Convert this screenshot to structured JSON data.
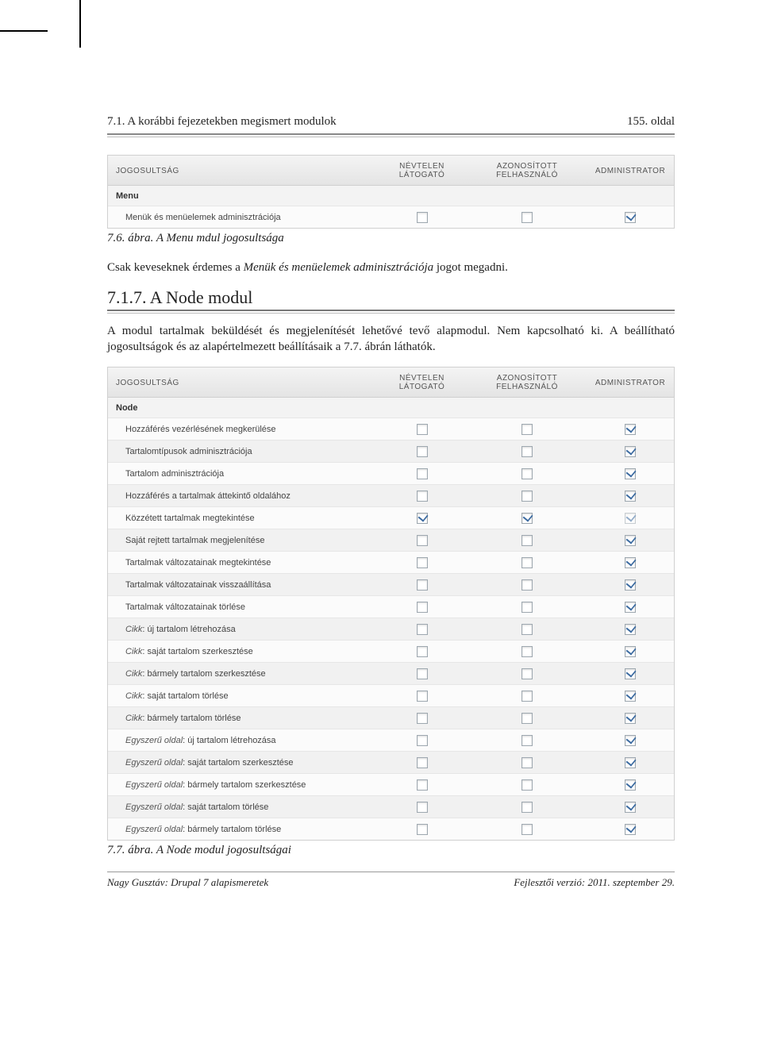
{
  "runhead": {
    "left": "7.1. A korábbi fejezetekben megismert modulok",
    "right": "155. oldal"
  },
  "table1": {
    "headers": [
      "JOGOSULTSÁG",
      "NÉVTELEN LÁTOGATÓ",
      "AZONOSÍTOTT FELHASZNÁLÓ",
      "ADMINISTRATOR"
    ],
    "group": "Menu",
    "rows": [
      {
        "label": "Menük és menüelemek adminisztrációja",
        "c1": false,
        "c2": false,
        "c3": true,
        "alt": false
      }
    ]
  },
  "fig1_caption": "7.6. ábra. A Menu mdul jogosultsága",
  "para1_a": "Csak keveseknek érdemes a ",
  "para1_em": "Menük és menüelemek adminisztrációja",
  "para1_b": " jogot megadni.",
  "sect_title": "7.1.7. A Node modul",
  "para2": "A modul tartalmak beküldését és megjelenítését lehetővé tevő alapmodul. Nem kapcsolható ki. A beállítható jogosultságok és az alapértelmezett beállításaik a 7.7. ábrán láthatók.",
  "table2": {
    "headers": [
      "JOGOSULTSÁG",
      "NÉVTELEN LÁTOGATÓ",
      "AZONOSÍTOTT FELHASZNÁLÓ",
      "ADMINISTRATOR"
    ],
    "group": "Node",
    "rows": [
      {
        "label": "Hozzáférés vezérlésének megkerülése",
        "c1": false,
        "c2": false,
        "c3": true,
        "alt": false
      },
      {
        "label": "Tartalomtípusok adminisztrációja",
        "c1": false,
        "c2": false,
        "c3": true,
        "alt": true
      },
      {
        "label": "Tartalom adminisztrációja",
        "c1": false,
        "c2": false,
        "c3": true,
        "alt": false
      },
      {
        "label": "Hozzáférés a tartalmak áttekintő oldalához",
        "c1": false,
        "c2": false,
        "c3": true,
        "alt": true
      },
      {
        "label": "Közzétett tartalmak megtekintése",
        "c1": true,
        "c2": true,
        "c3": true,
        "c3dis": true,
        "alt": false
      },
      {
        "label": "Saját rejtett tartalmak megjelenítése",
        "c1": false,
        "c2": false,
        "c3": true,
        "alt": true
      },
      {
        "label": "Tartalmak változatainak megtekintése",
        "c1": false,
        "c2": false,
        "c3": true,
        "alt": false
      },
      {
        "label": "Tartalmak változatainak visszaállítása",
        "c1": false,
        "c2": false,
        "c3": true,
        "alt": true
      },
      {
        "label": "Tartalmak változatainak törlése",
        "c1": false,
        "c2": false,
        "c3": true,
        "alt": false
      },
      {
        "em": "Cikk",
        "label": ": új tartalom létrehozása",
        "c1": false,
        "c2": false,
        "c3": true,
        "alt": true
      },
      {
        "em": "Cikk",
        "label": ": saját tartalom szerkesztése",
        "c1": false,
        "c2": false,
        "c3": true,
        "alt": false
      },
      {
        "em": "Cikk",
        "label": ": bármely tartalom szerkesztése",
        "c1": false,
        "c2": false,
        "c3": true,
        "alt": true
      },
      {
        "em": "Cikk",
        "label": ": saját tartalom törlése",
        "c1": false,
        "c2": false,
        "c3": true,
        "alt": false
      },
      {
        "em": "Cikk",
        "label": ": bármely tartalom törlése",
        "c1": false,
        "c2": false,
        "c3": true,
        "alt": true
      },
      {
        "em": "Egyszerű oldal",
        "label": ": új tartalom létrehozása",
        "c1": false,
        "c2": false,
        "c3": true,
        "alt": false
      },
      {
        "em": "Egyszerű oldal",
        "label": ": saját tartalom szerkesztése",
        "c1": false,
        "c2": false,
        "c3": true,
        "alt": true
      },
      {
        "em": "Egyszerű oldal",
        "label": ": bármely tartalom szerkesztése",
        "c1": false,
        "c2": false,
        "c3": true,
        "alt": false
      },
      {
        "em": "Egyszerű oldal",
        "label": ": saját tartalom törlése",
        "c1": false,
        "c2": false,
        "c3": true,
        "alt": true
      },
      {
        "em": "Egyszerű oldal",
        "label": ": bármely tartalom törlése",
        "c1": false,
        "c2": false,
        "c3": true,
        "alt": false
      }
    ]
  },
  "fig2_caption": "7.7. ábra. A Node modul jogosultságai",
  "footer": {
    "left": "Nagy Gusztáv: Drupal 7 alapismeretek",
    "right": "Fejlesztői verzió: 2011. szeptember 29."
  }
}
